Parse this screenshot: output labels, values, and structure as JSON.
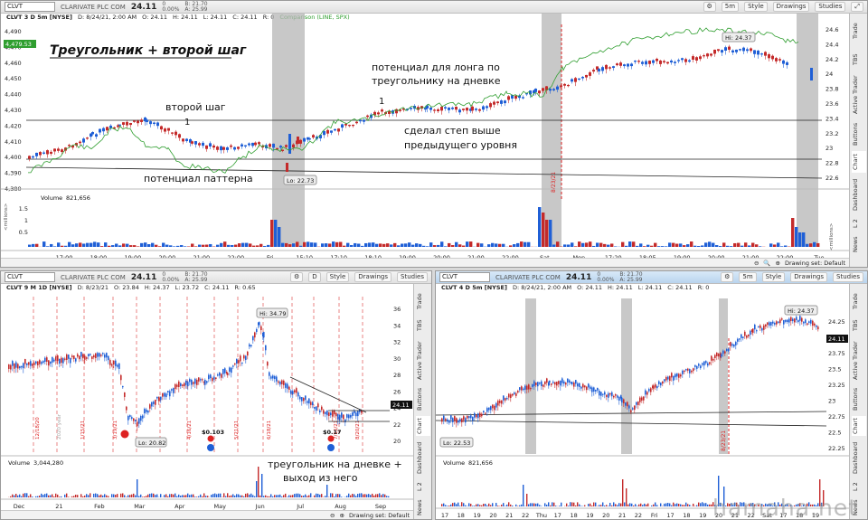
{
  "top": {
    "symbol": "CLVT",
    "company": "CLARIVATE PLC COM",
    "last": "24.11",
    "change_line1": "0",
    "change_line2": "0.00%",
    "bid": "B: 21.70",
    "ask": "A: 25.99",
    "timeframe": "5m",
    "style_label": "Style",
    "drawings_label": "Drawings",
    "studies_label": "Studies",
    "info": {
      "title": "CLVT 3 D 5m [NYSE]",
      "date": "D: 8/24/21, 2:00 AM",
      "open": "O: 24.11",
      "high": "H: 24.11",
      "low": "L: 24.11",
      "close": "C: 24.11",
      "range": "R: 0",
      "comparison": "Comparison (LINE, SPX)"
    },
    "left_axis": [
      "4,490",
      "4,470",
      "4,460",
      "4,450",
      "4,440",
      "4,430",
      "4,420",
      "4,410",
      "4,400",
      "4,390",
      "4,380"
    ],
    "left_axis_badge": "4,479.53",
    "right_axis": [
      "24.6",
      "24.4",
      "24.2",
      "24",
      "23.8",
      "23.6",
      "23.4",
      "23.2",
      "23",
      "22.8",
      "22.6"
    ],
    "time_axis": [
      "17:00",
      "18:00",
      "19:00",
      "20:00",
      "21:00",
      "22:00",
      "Fri",
      "15:10",
      "17:10",
      "18:10",
      "19:00",
      "20:00",
      "21:00",
      "22:00",
      "Sat",
      "Mon",
      "17:20",
      "18:05",
      "19:00",
      "20:00",
      "21:00",
      "22:00",
      "Tue"
    ],
    "annotations": {
      "title": "Треугольник + второй шаг",
      "second_step": "второй шаг",
      "pattern_potential": "потенциал паттерна",
      "long_potential_1": "потенциал для лонга по",
      "long_potential_2": "треугольнику на дневке",
      "step_above_1": "сделал степ выше",
      "step_above_2": "предыдущего уровня",
      "mark1": "1",
      "mark2": "1"
    },
    "hi_label": "Hi: 24.37",
    "lo_label": "Lo: 22.73",
    "date_marker": "8/23/21",
    "volume_label": "Volume",
    "volume_value": "821,656",
    "volume_axis": [
      "1.5",
      "1",
      "0.5"
    ],
    "volume_unit": "<millions>",
    "drawing_set": "Drawing set: Default",
    "side_tabs": [
      "Trade",
      "TBS",
      "Active Trader",
      "Buttons",
      "Chart",
      "Dashboard",
      "L 2",
      "News"
    ]
  },
  "bottom_left": {
    "symbol": "CLVT",
    "company": "CLARIVATE PLC COM",
    "last": "24.11",
    "change_line1": "0",
    "change_line2": "0.00%",
    "bid": "B: 21.70",
    "ask": "A: 25.99",
    "timeframe": "D",
    "style_label": "Style",
    "drawings_label": "Drawings",
    "studies_label": "Studies",
    "info": {
      "title": "CLVT 9 M 1D [NYSE]",
      "date": "D: 8/23/21",
      "open": "O: 23.84",
      "high": "H: 24.37",
      "low": "L: 23.72",
      "close": "C: 24.11",
      "range": "R: 0.65"
    },
    "right_axis": [
      "36",
      "34",
      "32",
      "30",
      "28",
      "26",
      "24",
      "22",
      "20"
    ],
    "price_badge": "24.11",
    "hi_label": "Hi: 34.79",
    "lo_label": "Lo: 20.82",
    "dividend_1": "$0.103",
    "dividend_2": "$0.17",
    "dates": [
      "12/18/20",
      "2020 year",
      "1/15/21",
      "3/19/21",
      "4/16/21",
      "5/21/21",
      "6/18/21",
      "7/16/21",
      "8/20/21"
    ],
    "annotation_1": "треугольник на дневке +",
    "annotation_2": "выход из него",
    "volume_label": "Volume",
    "volume_value": "3,044,280",
    "time_axis": [
      "Dec",
      "21",
      "Feb",
      "Mar",
      "Apr",
      "May",
      "Jun",
      "Jul",
      "Aug",
      "Sep"
    ],
    "drawing_set": "Drawing set: Default",
    "side_tabs": [
      "Trade",
      "TBS",
      "Active Trader",
      "Buttons",
      "Chart",
      "Dashboard",
      "L 2",
      "News"
    ]
  },
  "bottom_right": {
    "symbol": "CLVT",
    "company": "CLARIVATE PLC COM",
    "last": "24.11",
    "change_line1": "0",
    "change_line2": "0.00%",
    "bid": "B: 21.70",
    "ask": "A: 25.99",
    "timeframe": "5m",
    "style_label": "Style",
    "drawings_label": "Drawings",
    "studies_label": "Studies",
    "info": {
      "title": "CLVT 4 D 5m [NYSE]",
      "date": "D: 8/24/21, 2:00 AM",
      "open": "O: 24.11",
      "high": "H: 24.11",
      "low": "L: 24.11",
      "close": "C: 24.11",
      "range": "R: 0"
    },
    "right_axis": [
      "24.25",
      "24",
      "23.75",
      "23.5",
      "23.25",
      "23",
      "22.75",
      "22.5",
      "22.25"
    ],
    "price_badge": "24.11",
    "hi_label": "Hi: 24.37",
    "lo_label": "Lo: 22.53",
    "date_marker": "8/23/21",
    "volume_label": "Volume",
    "volume_value": "821,656",
    "time_axis": [
      "17",
      "18",
      "19",
      "20",
      "21",
      "22",
      "Thu",
      "17",
      "18",
      "19",
      "20",
      "21",
      "22",
      "Fri",
      "17",
      "18",
      "19",
      "20",
      "21",
      "22",
      "Sat",
      "17",
      "18",
      "19"
    ],
    "side_tabs": [
      "Trade",
      "TBS",
      "Active Trader",
      "Buttons",
      "Chart",
      "Dashboard",
      "L 2",
      "News"
    ]
  },
  "watermark": "hamaha.net",
  "colors": {
    "up": "#1f5fd6",
    "down": "#c42a2a",
    "comparison": "#2f9e2f",
    "highlight": "#a9a9a9"
  }
}
